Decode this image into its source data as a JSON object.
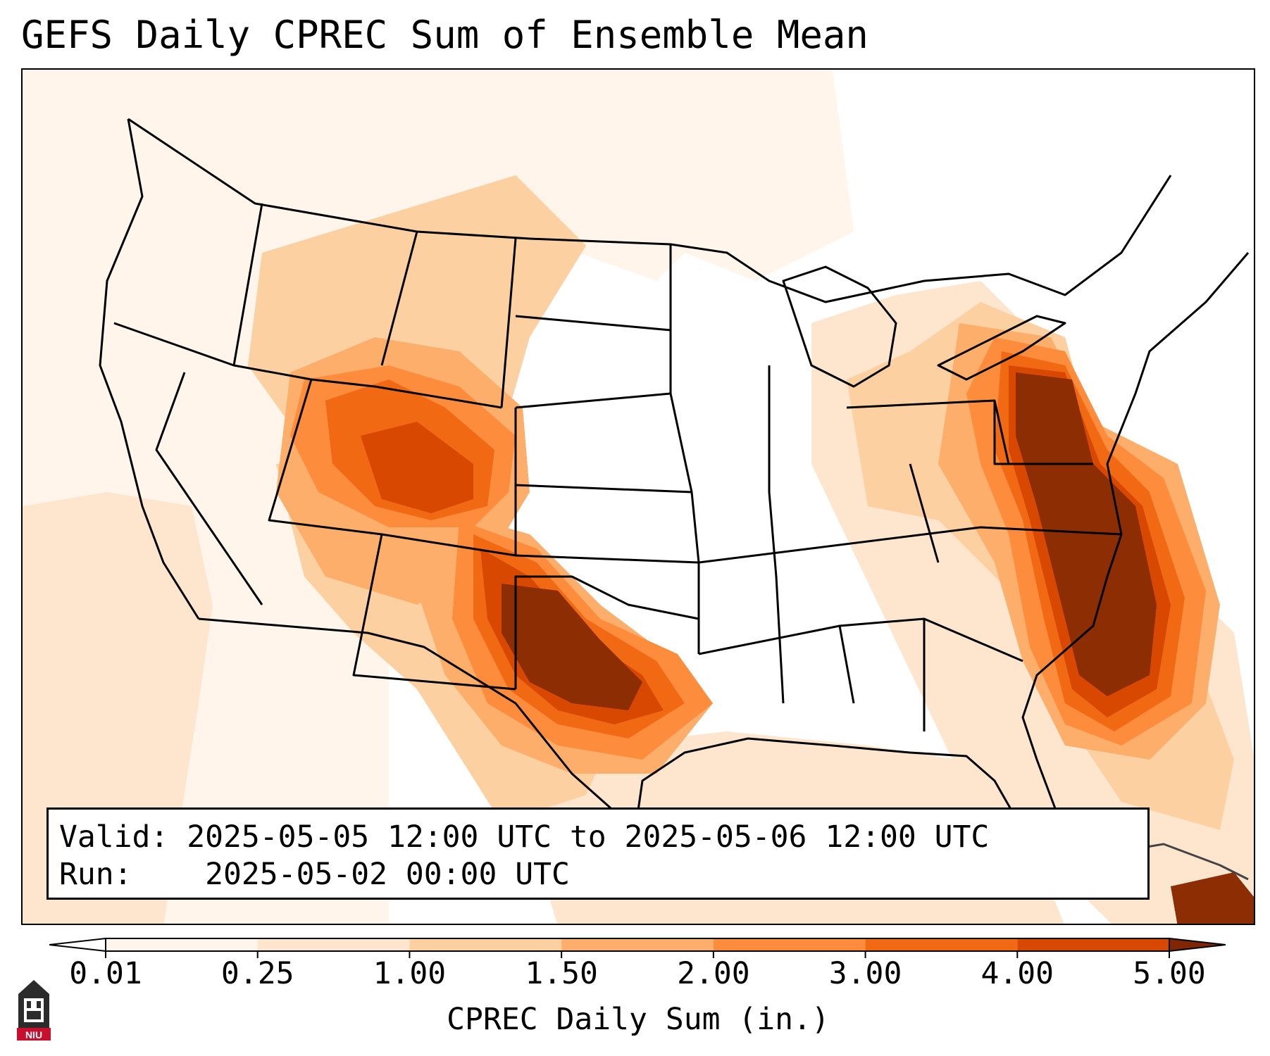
{
  "title": "GEFS Daily CPREC Sum of Ensemble Mean",
  "map": {
    "projection": "Lambert conformal, contiguous United States",
    "region": "CONUS"
  },
  "info_box": {
    "valid_label": "Valid:",
    "valid_value": "2025-05-05 12:00 UTC to 2025-05-06 12:00 UTC",
    "run_label": "Run:",
    "run_value": "2025-05-02 00:00 UTC"
  },
  "colorbar": {
    "label": "CPREC Daily Sum (in.)",
    "ticks": [
      "0.01",
      "0.25",
      "1.00",
      "1.50",
      "2.00",
      "3.00",
      "4.00",
      "5.00"
    ],
    "colors": [
      "#fff5eb",
      "#fee6ce",
      "#fdd0a2",
      "#fdae6b",
      "#fd8d3c",
      "#f16913",
      "#d94801",
      "#8c2d04"
    ],
    "under_color": "#ffffff",
    "over_color": "#7f2704"
  },
  "logo": {
    "text": "NIU"
  }
}
